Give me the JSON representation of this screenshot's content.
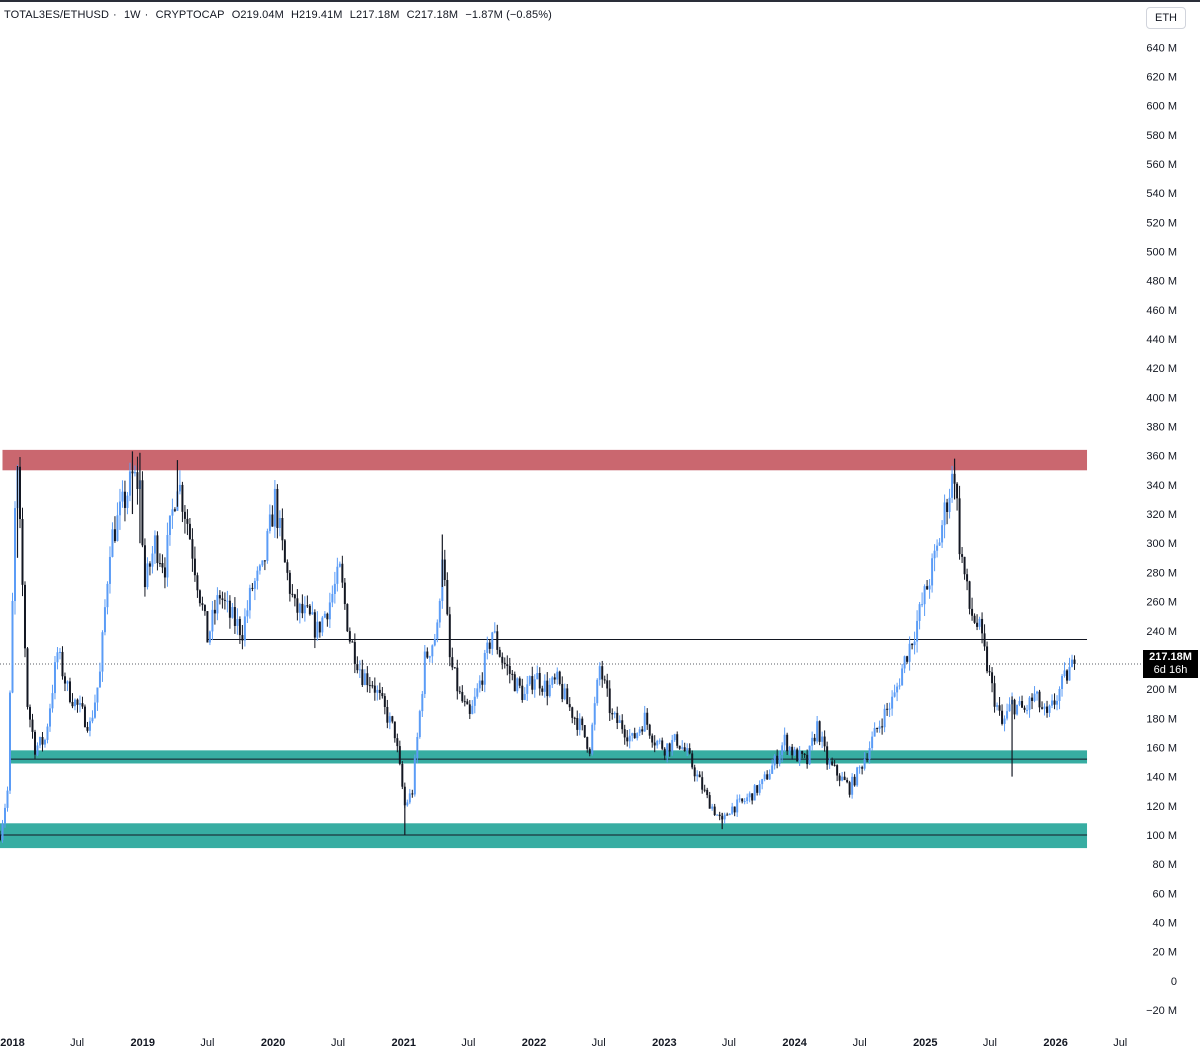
{
  "legend": {
    "symbol": "TOTAL3ES/ETHUSD",
    "interval": "1W",
    "exchange": "CRYPTOCAP",
    "open": "O219.04M",
    "high": "H219.41M",
    "low": "L217.18M",
    "close": "C217.18M",
    "change": "−1.87M (−0.85%)"
  },
  "currency_button": "ETH",
  "last_price": {
    "price": "217.18M",
    "countdown": "6d 16h"
  },
  "colors": {
    "up": "#5b9cf6",
    "down": "#131722",
    "resistance_zone": "#c55a63",
    "support_zone": "#26a69a",
    "level_line": "#131722"
  },
  "chart_data": {
    "type": "candlestick",
    "interval": "1W",
    "y_unit": "M (ETH)",
    "ylim": [
      -20,
      645
    ],
    "xlim": [
      "2017-11-27",
      "2026-08-31"
    ],
    "y_ticks": [
      {
        "v": 640,
        "label": "640 M"
      },
      {
        "v": 620,
        "label": "620 M"
      },
      {
        "v": 600,
        "label": "600 M"
      },
      {
        "v": 580,
        "label": "580 M"
      },
      {
        "v": 560,
        "label": "560 M"
      },
      {
        "v": 540,
        "label": "540 M"
      },
      {
        "v": 520,
        "label": "520 M"
      },
      {
        "v": 500,
        "label": "500 M"
      },
      {
        "v": 480,
        "label": "480 M"
      },
      {
        "v": 460,
        "label": "460 M"
      },
      {
        "v": 440,
        "label": "440 M"
      },
      {
        "v": 420,
        "label": "420 M"
      },
      {
        "v": 400,
        "label": "400 M"
      },
      {
        "v": 380,
        "label": "380 M"
      },
      {
        "v": 360,
        "label": "360 M"
      },
      {
        "v": 340,
        "label": "340 M"
      },
      {
        "v": 320,
        "label": "320 M"
      },
      {
        "v": 300,
        "label": "300 M"
      },
      {
        "v": 280,
        "label": "280 M"
      },
      {
        "v": 260,
        "label": "260 M"
      },
      {
        "v": 240,
        "label": "240 M"
      },
      {
        "v": 200,
        "label": "200 M"
      },
      {
        "v": 180,
        "label": "180 M"
      },
      {
        "v": 160,
        "label": "160 M"
      },
      {
        "v": 140,
        "label": "140 M"
      },
      {
        "v": 120,
        "label": "120 M"
      },
      {
        "v": 100,
        "label": "100 M"
      },
      {
        "v": 80,
        "label": "80 M"
      },
      {
        "v": 60,
        "label": "60 M"
      },
      {
        "v": 40,
        "label": "40 M"
      },
      {
        "v": 20,
        "label": "20 M"
      },
      {
        "v": 0,
        "label": "0"
      },
      {
        "v": -20,
        "label": "−20 M"
      }
    ],
    "x_ticks": [
      {
        "date": "2018-01-01",
        "label": "2018",
        "year": true
      },
      {
        "date": "2018-07-01",
        "label": "Jul",
        "year": false
      },
      {
        "date": "2019-01-01",
        "label": "2019",
        "year": true
      },
      {
        "date": "2019-07-01",
        "label": "Jul",
        "year": false
      },
      {
        "date": "2020-01-01",
        "label": "2020",
        "year": true
      },
      {
        "date": "2020-07-01",
        "label": "Jul",
        "year": false
      },
      {
        "date": "2021-01-01",
        "label": "2021",
        "year": true
      },
      {
        "date": "2021-07-01",
        "label": "Jul",
        "year": false
      },
      {
        "date": "2022-01-01",
        "label": "2022",
        "year": true
      },
      {
        "date": "2022-07-01",
        "label": "Jul",
        "year": false
      },
      {
        "date": "2023-01-01",
        "label": "2023",
        "year": true
      },
      {
        "date": "2023-07-01",
        "label": "Jul",
        "year": false
      },
      {
        "date": "2024-01-01",
        "label": "2024",
        "year": true
      },
      {
        "date": "2024-07-01",
        "label": "Jul",
        "year": false
      },
      {
        "date": "2025-01-01",
        "label": "2025",
        "year": true
      },
      {
        "date": "2025-07-01",
        "label": "Jul",
        "year": false
      },
      {
        "date": "2026-01-01",
        "label": "2026",
        "year": true
      },
      {
        "date": "2026-07-01",
        "label": "Jul",
        "year": false
      }
    ],
    "zones": [
      {
        "name": "resistance-zone",
        "from_date": "2017-12-04",
        "to_date": "2026-03-30",
        "y_low": 350,
        "y_high": 364,
        "color": "#c55a63"
      },
      {
        "name": "support-zone-upper",
        "from_date": "2017-12-25",
        "to_date": "2026-03-30",
        "y_low": 149,
        "y_high": 158,
        "color": "#26a69a"
      },
      {
        "name": "support-zone-lower",
        "from_date": "2017-11-27",
        "to_date": "2026-03-30",
        "y_low": 91,
        "y_high": 108,
        "color": "#26a69a"
      }
    ],
    "lines": [
      {
        "name": "mid-range-line",
        "from_date": "2019-07-01",
        "to_date": "2026-03-30",
        "y": 234
      },
      {
        "name": "support-line-upper",
        "from_date": "2017-12-25",
        "to_date": "2026-03-30",
        "y": 152
      },
      {
        "name": "support-line-lower",
        "from_date": "2017-11-27",
        "to_date": "2026-03-30",
        "y": 100
      },
      {
        "name": "last-price-line",
        "from_date": "2017-11-27",
        "to_date": "2026-08-31",
        "y": 217.18,
        "dotted": true
      }
    ],
    "close_path": [
      [
        "2017-11-27",
        100
      ],
      [
        "2017-12-18",
        130
      ],
      [
        "2018-01-08",
        320
      ],
      [
        "2018-01-15",
        345
      ],
      [
        "2018-01-29",
        270
      ],
      [
        "2018-02-12",
        190
      ],
      [
        "2018-03-05",
        160
      ],
      [
        "2018-04-02",
        165
      ],
      [
        "2018-05-07",
        225
      ],
      [
        "2018-06-04",
        200
      ],
      [
        "2018-07-02",
        188
      ],
      [
        "2018-08-06",
        175
      ],
      [
        "2018-09-03",
        210
      ],
      [
        "2018-10-01",
        300
      ],
      [
        "2018-11-05",
        325
      ],
      [
        "2018-12-03",
        345
      ],
      [
        "2018-12-24",
        340
      ],
      [
        "2019-01-07",
        270
      ],
      [
        "2019-02-04",
        300
      ],
      [
        "2019-03-04",
        285
      ],
      [
        "2019-04-08",
        345
      ],
      [
        "2019-05-06",
        315
      ],
      [
        "2019-06-03",
        275
      ],
      [
        "2019-07-01",
        235
      ],
      [
        "2019-08-05",
        265
      ],
      [
        "2019-09-02",
        250
      ],
      [
        "2019-10-07",
        240
      ],
      [
        "2019-11-04",
        270
      ],
      [
        "2019-12-02",
        280
      ],
      [
        "2020-01-06",
        330
      ],
      [
        "2020-02-03",
        285
      ],
      [
        "2020-03-02",
        255
      ],
      [
        "2020-04-06",
        250
      ],
      [
        "2020-05-04",
        240
      ],
      [
        "2020-06-08",
        260
      ],
      [
        "2020-07-06",
        280
      ],
      [
        "2020-08-03",
        235
      ],
      [
        "2020-09-07",
        210
      ],
      [
        "2020-10-05",
        205
      ],
      [
        "2020-11-09",
        185
      ],
      [
        "2020-12-07",
        170
      ],
      [
        "2021-01-04",
        120
      ],
      [
        "2021-01-25",
        130
      ],
      [
        "2021-03-01",
        220
      ],
      [
        "2021-04-05",
        240
      ],
      [
        "2021-04-19",
        295
      ],
      [
        "2021-05-10",
        220
      ],
      [
        "2021-06-07",
        195
      ],
      [
        "2021-07-05",
        180
      ],
      [
        "2021-08-09",
        210
      ],
      [
        "2021-09-06",
        240
      ],
      [
        "2021-10-04",
        220
      ],
      [
        "2021-11-08",
        205
      ],
      [
        "2021-12-06",
        195
      ],
      [
        "2022-01-03",
        210
      ],
      [
        "2022-02-07",
        200
      ],
      [
        "2022-03-07",
        205
      ],
      [
        "2022-04-04",
        190
      ],
      [
        "2022-05-09",
        175
      ],
      [
        "2022-06-06",
        160
      ],
      [
        "2022-07-04",
        215
      ],
      [
        "2022-08-08",
        180
      ],
      [
        "2022-09-05",
        175
      ],
      [
        "2022-10-03",
        165
      ],
      [
        "2022-11-07",
        180
      ],
      [
        "2022-12-05",
        165
      ],
      [
        "2023-01-02",
        160
      ],
      [
        "2023-02-06",
        165
      ],
      [
        "2023-03-06",
        155
      ],
      [
        "2023-04-03",
        140
      ],
      [
        "2023-05-01",
        125
      ],
      [
        "2023-06-12",
        108
      ],
      [
        "2023-07-03",
        118
      ],
      [
        "2023-08-07",
        122
      ],
      [
        "2023-09-04",
        128
      ],
      [
        "2023-10-02",
        135
      ],
      [
        "2023-11-06",
        150
      ],
      [
        "2023-12-04",
        165
      ],
      [
        "2024-01-01",
        155
      ],
      [
        "2024-02-05",
        150
      ],
      [
        "2024-03-04",
        175
      ],
      [
        "2024-04-01",
        150
      ],
      [
        "2024-05-06",
        140
      ],
      [
        "2024-06-03",
        132
      ],
      [
        "2024-07-01",
        145
      ],
      [
        "2024-08-05",
        165
      ],
      [
        "2024-09-02",
        180
      ],
      [
        "2024-10-07",
        195
      ],
      [
        "2024-11-04",
        220
      ],
      [
        "2024-12-02",
        240
      ],
      [
        "2025-01-06",
        270
      ],
      [
        "2025-02-03",
        295
      ],
      [
        "2025-03-03",
        330
      ],
      [
        "2025-03-24",
        350
      ],
      [
        "2025-04-07",
        300
      ],
      [
        "2025-05-05",
        255
      ],
      [
        "2025-06-02",
        240
      ],
      [
        "2025-07-07",
        200
      ],
      [
        "2025-08-04",
        175
      ],
      [
        "2025-09-01",
        190
      ],
      [
        "2025-10-06",
        185
      ],
      [
        "2025-11-03",
        195
      ],
      [
        "2025-12-08",
        180
      ],
      [
        "2026-01-05",
        195
      ],
      [
        "2026-02-02",
        210
      ],
      [
        "2026-02-23",
        217.18
      ]
    ],
    "wick_marks": [
      {
        "date": "2018-01-15",
        "high": 353,
        "low": 290
      },
      {
        "date": "2018-12-03",
        "high": 363,
        "low": 320
      },
      {
        "date": "2018-12-24",
        "high": 362,
        "low": 300
      },
      {
        "date": "2019-04-08",
        "high": 357,
        "low": 325
      },
      {
        "date": "2021-01-04",
        "high": 130,
        "low": 100
      },
      {
        "date": "2021-04-19",
        "high": 306,
        "low": 270
      },
      {
        "date": "2023-06-12",
        "high": 115,
        "low": 104
      },
      {
        "date": "2025-03-24",
        "high": 358,
        "low": 330
      },
      {
        "date": "2025-09-01",
        "high": 195,
        "low": 140
      }
    ]
  }
}
